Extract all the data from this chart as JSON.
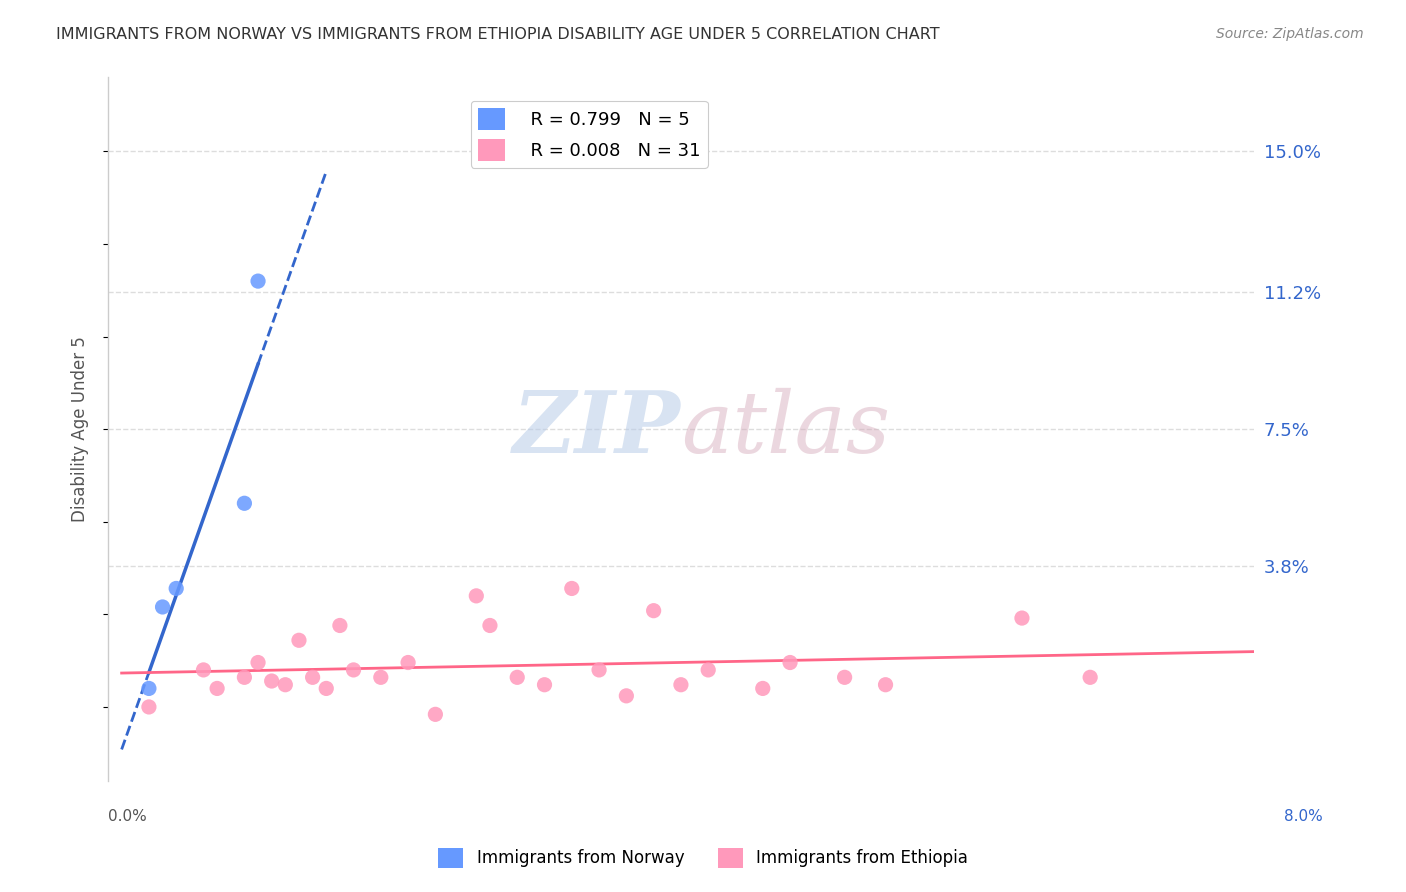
{
  "title": "IMMIGRANTS FROM NORWAY VS IMMIGRANTS FROM ETHIOPIA DISABILITY AGE UNDER 5 CORRELATION CHART",
  "source": "Source: ZipAtlas.com",
  "ylabel": "Disability Age Under 5",
  "xlabel_bottom_left": "0.0%",
  "xlabel_bottom_right": "8.0%",
  "right_yticks": [
    "15.0%",
    "11.2%",
    "7.5%",
    "3.8%"
  ],
  "right_ytick_vals": [
    0.15,
    0.112,
    0.075,
    0.038
  ],
  "norway_label": "Immigrants from Norway",
  "ethiopia_label": "Immigrants from Ethiopia",
  "norway_R": "0.799",
  "norway_N": "5",
  "ethiopia_R": "0.008",
  "ethiopia_N": "31",
  "norway_color": "#6699ff",
  "ethiopia_color": "#ff99bb",
  "norway_line_color": "#3366cc",
  "ethiopia_line_color": "#ff6688",
  "norway_scatter_x": [
    0.001,
    0.002,
    0.003,
    0.008,
    0.009
  ],
  "norway_scatter_y": [
    0.005,
    0.027,
    0.032,
    0.055,
    0.115
  ],
  "ethiopia_scatter_x": [
    0.001,
    0.005,
    0.006,
    0.008,
    0.009,
    0.01,
    0.011,
    0.012,
    0.013,
    0.014,
    0.015,
    0.016,
    0.018,
    0.02,
    0.022,
    0.025,
    0.026,
    0.028,
    0.03,
    0.032,
    0.034,
    0.036,
    0.038,
    0.04,
    0.042,
    0.046,
    0.048,
    0.052,
    0.055,
    0.065,
    0.07
  ],
  "ethiopia_scatter_y": [
    0.0,
    0.01,
    0.005,
    0.008,
    0.012,
    0.007,
    0.006,
    0.018,
    0.008,
    0.005,
    0.022,
    0.01,
    0.008,
    0.012,
    -0.002,
    0.03,
    0.022,
    0.008,
    0.006,
    0.032,
    0.01,
    0.003,
    0.026,
    0.006,
    0.01,
    0.005,
    0.012,
    0.008,
    0.006,
    0.024,
    0.008
  ],
  "xlim": [
    -0.002,
    0.082
  ],
  "ylim": [
    -0.02,
    0.17
  ],
  "grid_color": "#dddddd",
  "background_color": "#ffffff",
  "watermark_zip": "ZIP",
  "watermark_atlas": "atlas"
}
